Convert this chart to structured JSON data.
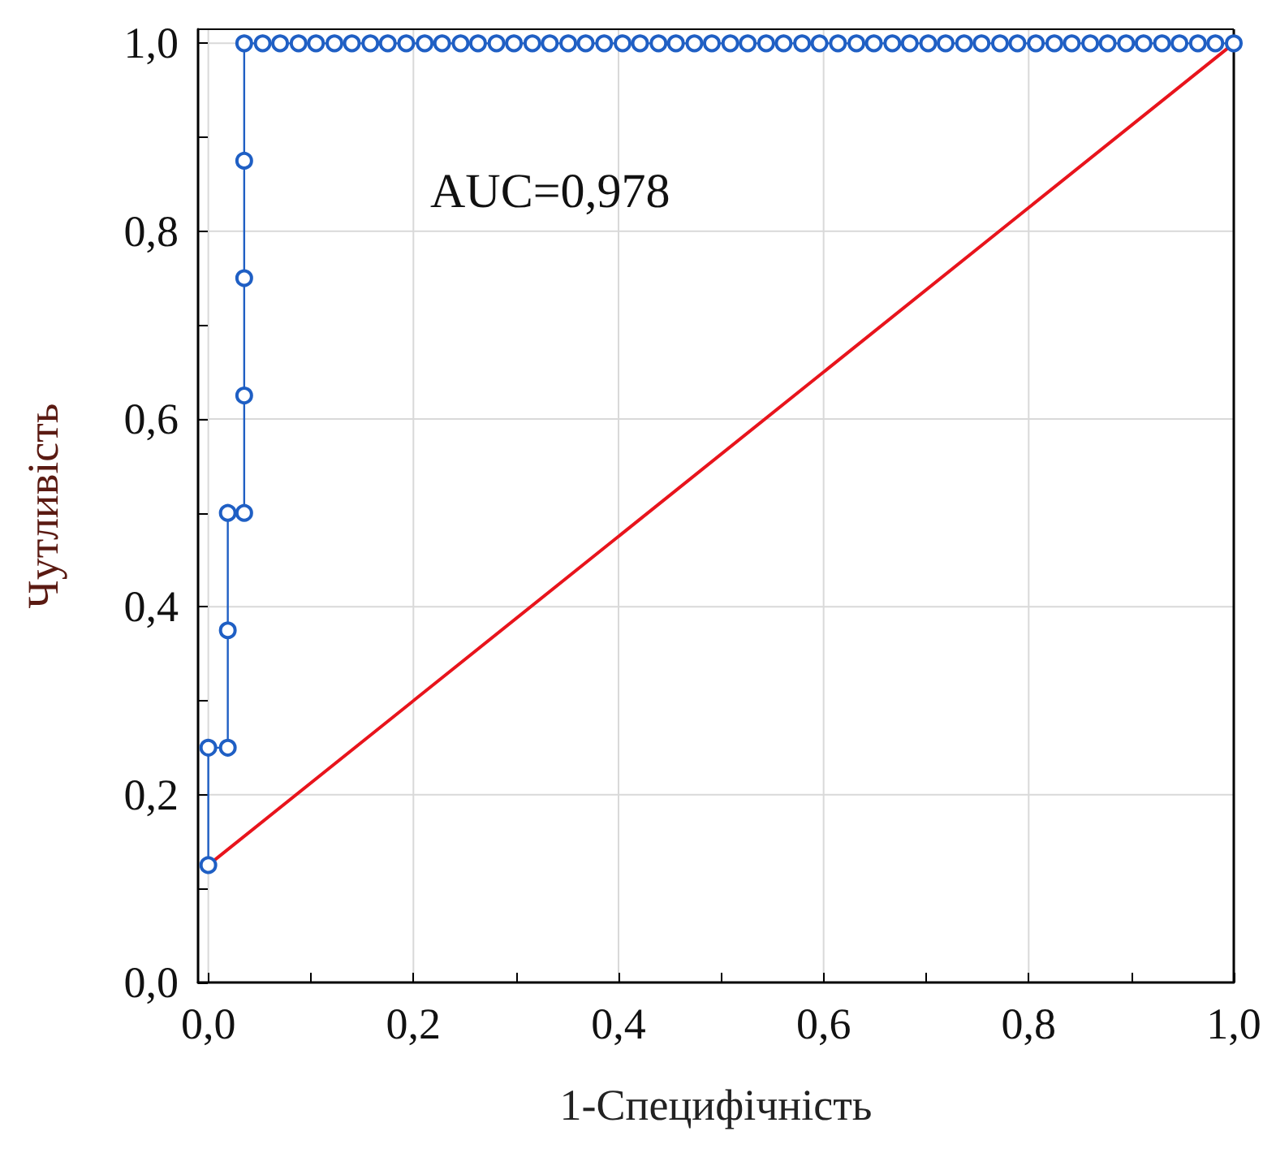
{
  "chart_data": {
    "type": "line",
    "xlabel": "1-Специфічність",
    "ylabel": "Чутливість",
    "annotations": [
      "AUC=0,978"
    ],
    "series": [
      {
        "color": "#1f5fc4",
        "marker": "circle",
        "x": [
          0,
          0,
          0.019,
          0.019,
          0.019,
          0.035,
          0.035,
          0.035,
          0.035,
          0.035,
          0.053,
          0.07,
          0.088,
          0.105,
          0.123,
          0.14,
          0.158,
          0.175,
          0.193,
          0.211,
          0.228,
          0.246,
          0.263,
          0.281,
          0.298,
          0.316,
          0.333,
          0.351,
          0.368,
          0.386,
          0.404,
          0.421,
          0.439,
          0.456,
          0.474,
          0.491,
          0.509,
          0.526,
          0.544,
          0.561,
          0.579,
          0.596,
          0.614,
          0.632,
          0.649,
          0.667,
          0.684,
          0.702,
          0.719,
          0.737,
          0.754,
          0.772,
          0.789,
          0.807,
          0.825,
          0.842,
          0.86,
          0.877,
          0.895,
          0.912,
          0.93,
          0.947,
          0.965,
          0.982,
          1.0
        ],
        "values": [
          0.125,
          0.25,
          0.25,
          0.375,
          0.5,
          0.5,
          0.625,
          0.75,
          0.875,
          1,
          1,
          1,
          1,
          1,
          1,
          1,
          1,
          1,
          1,
          1,
          1,
          1,
          1,
          1,
          1,
          1,
          1,
          1,
          1,
          1,
          1,
          1,
          1,
          1,
          1,
          1,
          1,
          1,
          1,
          1,
          1,
          1,
          1,
          1,
          1,
          1,
          1,
          1,
          1,
          1,
          1,
          1,
          1,
          1,
          1,
          1,
          1,
          1,
          1,
          1,
          1,
          1,
          1,
          1,
          1
        ]
      },
      {
        "color": "#e8141c",
        "marker": "none",
        "x": [
          0,
          1
        ],
        "values": [
          0.125,
          1
        ]
      }
    ],
    "xlim": [
      -0.01,
      1.0
    ],
    "ylim": [
      0,
      1.015
    ],
    "xticks": [
      {
        "value": 0,
        "label": "0,0"
      },
      {
        "value": 0.1,
        "label": null
      },
      {
        "value": 0.2,
        "label": "0,2"
      },
      {
        "value": 0.3,
        "label": null
      },
      {
        "value": 0.4,
        "label": "0,4"
      },
      {
        "value": 0.5,
        "label": null
      },
      {
        "value": 0.6,
        "label": "0,6"
      },
      {
        "value": 0.7,
        "label": null
      },
      {
        "value": 0.8,
        "label": "0,8"
      },
      {
        "value": 0.9,
        "label": null
      },
      {
        "value": 1.0,
        "label": "1,0"
      }
    ],
    "yticks": [
      {
        "value": 0,
        "label": "0,0"
      },
      {
        "value": 0.1,
        "label": null
      },
      {
        "value": 0.2,
        "label": "0,2"
      },
      {
        "value": 0.3,
        "label": null
      },
      {
        "value": 0.4,
        "label": "0,4"
      },
      {
        "value": 0.5,
        "label": null
      },
      {
        "value": 0.6,
        "label": "0,6"
      },
      {
        "value": 0.7,
        "label": null
      },
      {
        "value": 0.8,
        "label": "0,8"
      },
      {
        "value": 0.9,
        "label": null
      },
      {
        "value": 1.0,
        "label": "1,0"
      }
    ],
    "grid": true,
    "line_style": "solid"
  }
}
